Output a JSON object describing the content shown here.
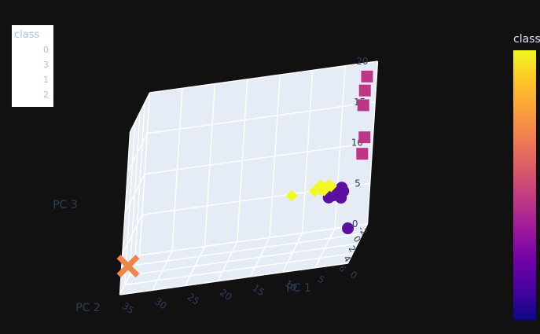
{
  "legend": {
    "title": "class",
    "entries": [
      "0",
      "3",
      "1",
      "2"
    ]
  },
  "colorbar": {
    "title": "class",
    "colors": [
      "#0d0887",
      "#46039f",
      "#7201a8",
      "#9c179e",
      "#bd3786",
      "#d8576b",
      "#ed7953",
      "#fb9f3a",
      "#fdca26",
      "#f0f921"
    ]
  },
  "chart_data": {
    "type": "scatter",
    "axes": {
      "x": {
        "label": "PC 1",
        "ticks": [
          0,
          5,
          10,
          15,
          20,
          25,
          30,
          35
        ],
        "range": [
          0,
          35
        ]
      },
      "y": {
        "label": "PC 2",
        "ticks": [
          -2,
          0,
          2,
          4,
          6
        ],
        "range": [
          -2,
          6
        ]
      },
      "z": {
        "label": "PC 3",
        "ticks": [
          0,
          5,
          10,
          15,
          20
        ],
        "range": [
          0,
          20
        ]
      }
    },
    "grid": true,
    "legend_placement": "top-left",
    "series": [
      {
        "name": "0",
        "marker": "circle",
        "color": "#5a0fa0",
        "points": [
          [
            3.5,
            1.0,
            6.0
          ],
          [
            4.0,
            1.5,
            6.2
          ],
          [
            4.5,
            0.5,
            5.8
          ],
          [
            3.0,
            1.2,
            6.3
          ],
          [
            5.0,
            1.8,
            6.1
          ],
          [
            3.8,
            0.8,
            5.9
          ],
          [
            4.2,
            2.0,
            6.4
          ],
          [
            3.2,
            1.5,
            5.7
          ],
          [
            4.8,
            1.0,
            6.0
          ],
          [
            3.6,
            0.2,
            6.2
          ],
          [
            2.0,
            1.0,
            1.5
          ]
        ]
      },
      {
        "name": "3",
        "marker": "x",
        "color": "#f0854a",
        "points": [
          [
            36.0,
            0.0,
            0.0
          ]
        ]
      },
      {
        "name": "1",
        "marker": "diamond",
        "color": "#f0f921",
        "points": [
          [
            5.0,
            1.0,
            7.0
          ],
          [
            6.0,
            1.5,
            7.2
          ],
          [
            6.5,
            0.8,
            6.8
          ],
          [
            7.0,
            1.2,
            7.1
          ],
          [
            5.5,
            0.5,
            6.9
          ],
          [
            6.2,
            2.0,
            7.3
          ],
          [
            7.5,
            1.0,
            6.7
          ],
          [
            5.8,
            1.7,
            7.0
          ],
          [
            6.8,
            0.3,
            6.9
          ],
          [
            11.0,
            1.0,
            6.5
          ]
        ]
      },
      {
        "name": "2",
        "marker": "square",
        "color": "#bd3786",
        "points": [
          [
            0.5,
            1.0,
            20.0
          ],
          [
            0.7,
            1.0,
            18.3
          ],
          [
            0.8,
            1.0,
            16.5
          ],
          [
            0.3,
            1.0,
            12.5
          ],
          [
            0.5,
            1.0,
            10.5
          ]
        ]
      }
    ]
  }
}
